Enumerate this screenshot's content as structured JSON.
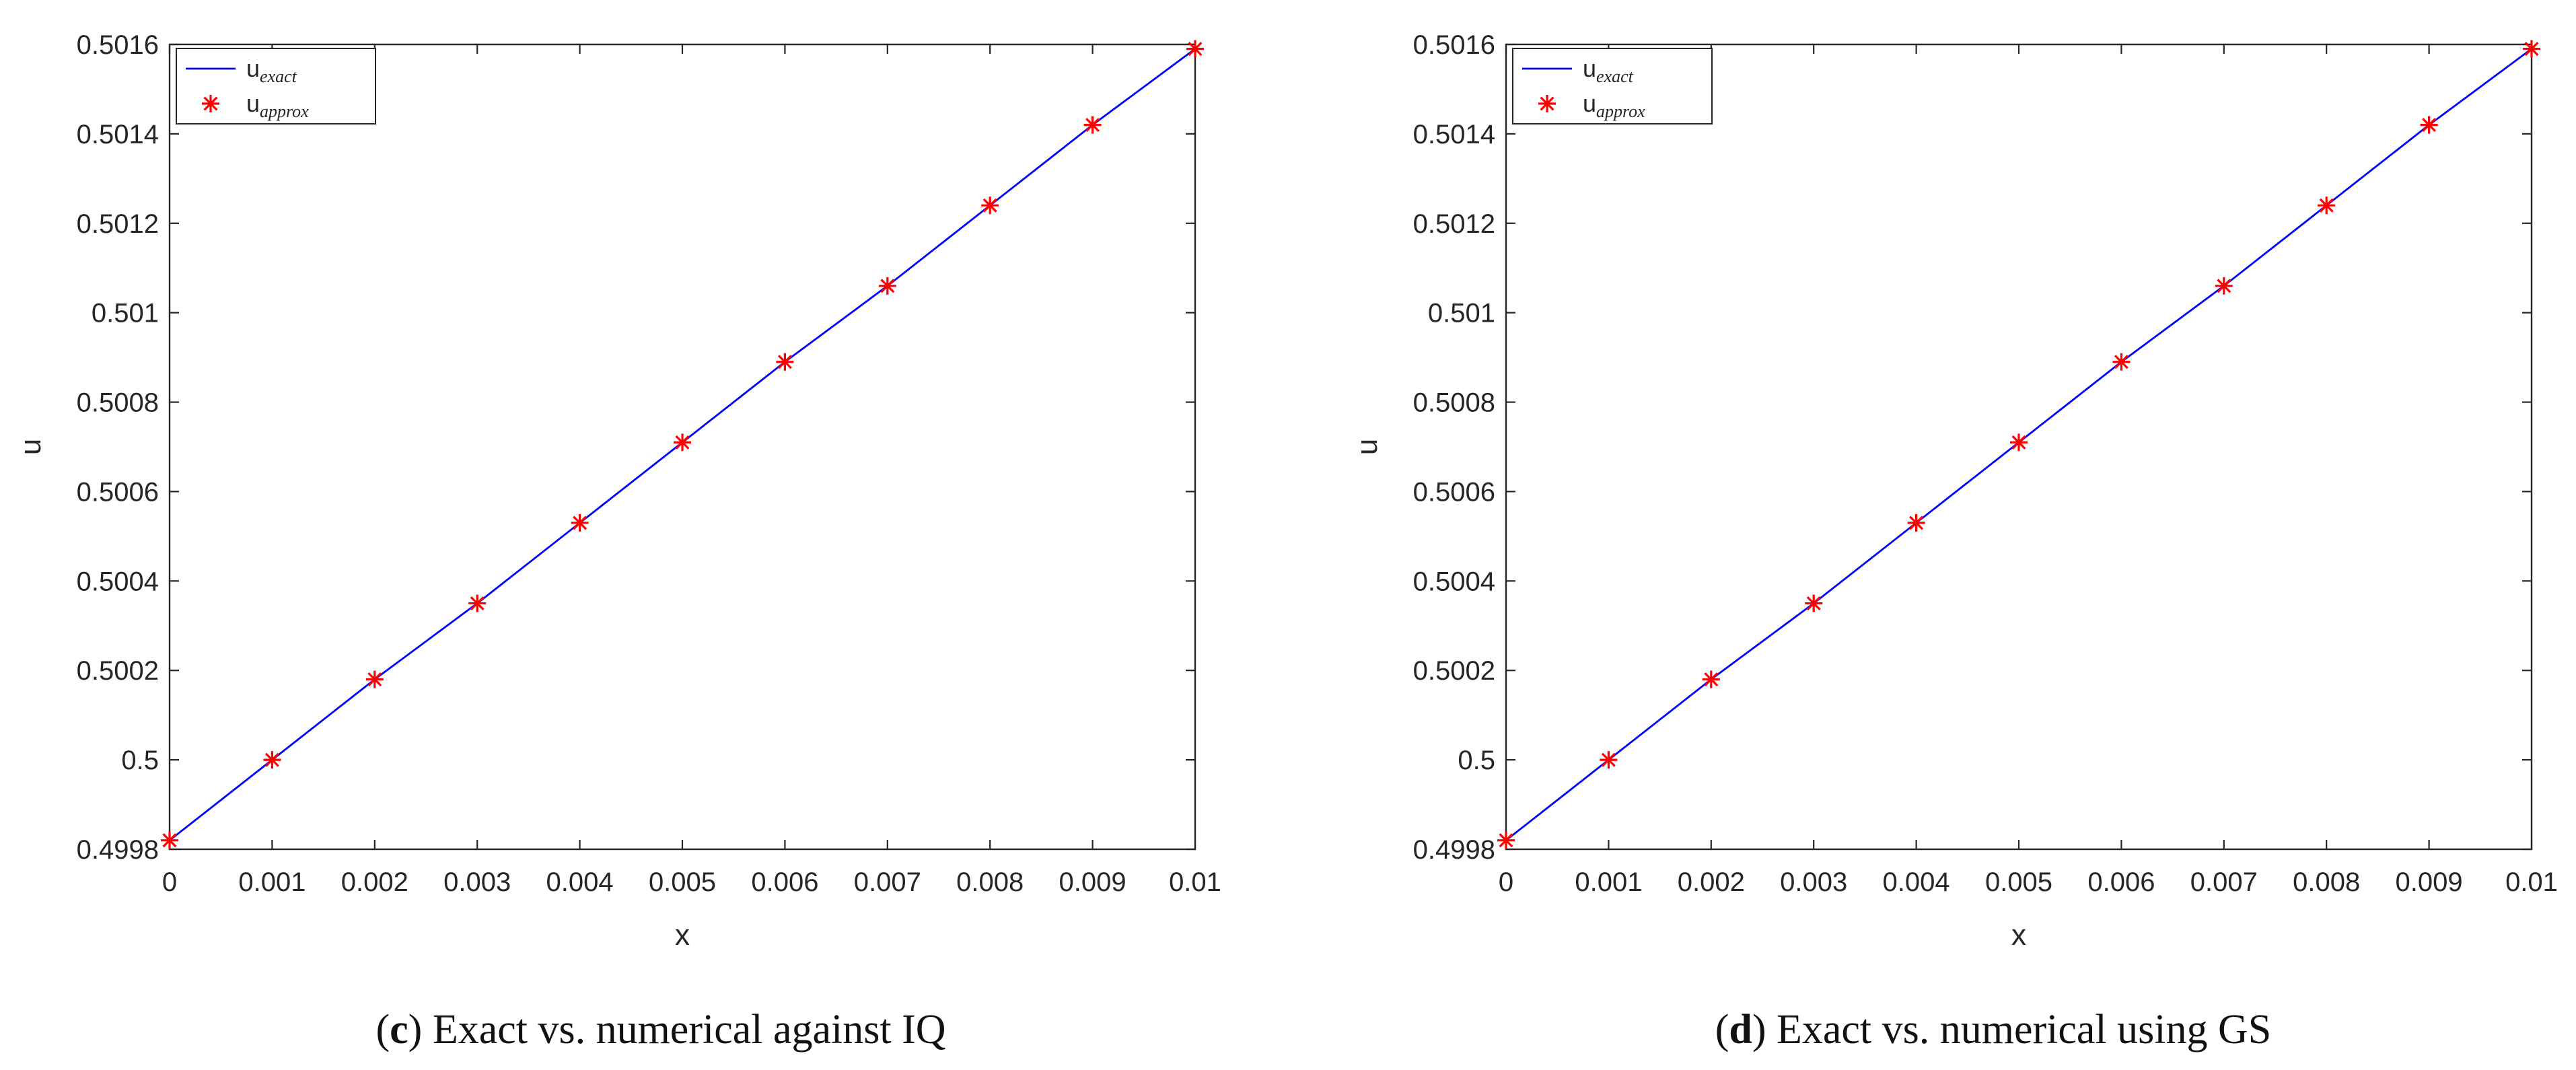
{
  "chart_data": [
    {
      "type": "line",
      "panel_label": "c",
      "caption": "Exact vs. numerical against IQ",
      "title": "",
      "xlabel": "x",
      "ylabel": "u",
      "xlim": [
        0,
        0.01
      ],
      "ylim": [
        0.4998,
        0.5016
      ],
      "x_ticks": [
        0,
        0.001,
        0.002,
        0.003,
        0.004,
        0.005,
        0.006,
        0.007,
        0.008,
        0.009,
        0.01
      ],
      "x_tick_labels": [
        "0",
        "0.001",
        "0.002",
        "0.003",
        "0.004",
        "0.005",
        "0.006",
        "0.007",
        "0.008",
        "0.009",
        "0.01"
      ],
      "y_ticks": [
        0.4998,
        0.5,
        0.5002,
        0.5004,
        0.5006,
        0.5008,
        0.501,
        0.5012,
        0.5014,
        0.5016
      ],
      "y_tick_labels": [
        "0.4998",
        "0.5",
        "0.5002",
        "0.5004",
        "0.5006",
        "0.5008",
        "0.501",
        "0.5012",
        "0.5014",
        "0.5016"
      ],
      "grid": false,
      "legend_location": "top-left",
      "series": [
        {
          "name": "u_exact",
          "legend_main": "u",
          "legend_sub": "exact",
          "style": "line",
          "color": "#0000ff",
          "x": [
            0,
            0.001,
            0.002,
            0.003,
            0.004,
            0.005,
            0.006,
            0.007,
            0.008,
            0.009,
            0.01
          ],
          "y": [
            0.49982,
            0.5,
            0.50018,
            0.50035,
            0.50053,
            0.50071,
            0.50089,
            0.50106,
            0.50124,
            0.50142,
            0.50159
          ]
        },
        {
          "name": "u_approx",
          "legend_main": "u",
          "legend_sub": "approx",
          "style": "marker",
          "marker": "asterisk",
          "color": "#ff0000",
          "x": [
            0,
            0.001,
            0.002,
            0.003,
            0.004,
            0.005,
            0.006,
            0.007,
            0.008,
            0.009,
            0.01
          ],
          "y": [
            0.49982,
            0.5,
            0.50018,
            0.50035,
            0.50053,
            0.50071,
            0.50089,
            0.50106,
            0.50124,
            0.50142,
            0.50159
          ]
        }
      ]
    },
    {
      "type": "line",
      "panel_label": "d",
      "caption": "Exact vs. numerical using GS",
      "title": "",
      "xlabel": "x",
      "ylabel": "u",
      "xlim": [
        0,
        0.01
      ],
      "ylim": [
        0.4998,
        0.5016
      ],
      "x_ticks": [
        0,
        0.001,
        0.002,
        0.003,
        0.004,
        0.005,
        0.006,
        0.007,
        0.008,
        0.009,
        0.01
      ],
      "x_tick_labels": [
        "0",
        "0.001",
        "0.002",
        "0.003",
        "0.004",
        "0.005",
        "0.006",
        "0.007",
        "0.008",
        "0.009",
        "0.01"
      ],
      "y_ticks": [
        0.4998,
        0.5,
        0.5002,
        0.5004,
        0.5006,
        0.5008,
        0.501,
        0.5012,
        0.5014,
        0.5016
      ],
      "y_tick_labels": [
        "0.4998",
        "0.5",
        "0.5002",
        "0.5004",
        "0.5006",
        "0.5008",
        "0.501",
        "0.5012",
        "0.5014",
        "0.5016"
      ],
      "grid": false,
      "legend_location": "top-left",
      "series": [
        {
          "name": "u_exact",
          "legend_main": "u",
          "legend_sub": "exact",
          "style": "line",
          "color": "#0000ff",
          "x": [
            0,
            0.001,
            0.002,
            0.003,
            0.004,
            0.005,
            0.006,
            0.007,
            0.008,
            0.009,
            0.01
          ],
          "y": [
            0.49982,
            0.5,
            0.50018,
            0.50035,
            0.50053,
            0.50071,
            0.50089,
            0.50106,
            0.50124,
            0.50142,
            0.50159
          ]
        },
        {
          "name": "u_approx",
          "legend_main": "u",
          "legend_sub": "approx",
          "style": "marker",
          "marker": "asterisk",
          "color": "#ff0000",
          "x": [
            0,
            0.001,
            0.002,
            0.003,
            0.004,
            0.005,
            0.006,
            0.007,
            0.008,
            0.009,
            0.01
          ],
          "y": [
            0.49982,
            0.5,
            0.50018,
            0.50035,
            0.50053,
            0.50071,
            0.50089,
            0.50106,
            0.50124,
            0.50142,
            0.50159
          ]
        }
      ]
    }
  ]
}
